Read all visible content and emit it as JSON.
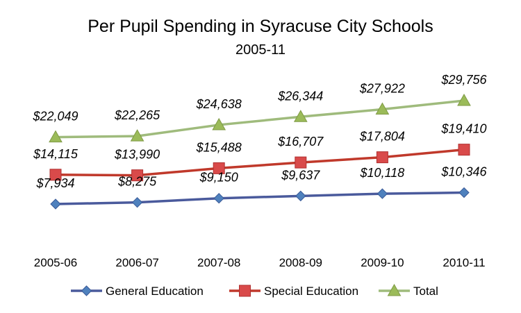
{
  "chart_data": {
    "type": "line",
    "title": "Per Pupil Spending  in Syracuse City Schools",
    "subtitle": "2005-11",
    "xlabel": "",
    "ylabel": "",
    "categories": [
      "2005-06",
      "2006-07",
      "2007-08",
      "2008-09",
      "2009-10",
      "2010-11"
    ],
    "series": [
      {
        "name": "General Education",
        "values": [
          7934,
          8275,
          9150,
          9637,
          10118,
          10346
        ],
        "labels": [
          "$7,934",
          "$8,275",
          "$9,150",
          "$9,637",
          "$10,118",
          "$10,346"
        ],
        "color": "#4a5a9c",
        "marker_color": "#4f81bd",
        "marker": "diamond"
      },
      {
        "name": "Special Education",
        "values": [
          14115,
          13990,
          15488,
          16707,
          17804,
          19410
        ],
        "labels": [
          "$14,115",
          "$13,990",
          "$15,488",
          "$16,707",
          "$17,804",
          "$19,410"
        ],
        "color": "#c0392b",
        "marker_color": "#d94a4a",
        "marker": "square"
      },
      {
        "name": "Total",
        "values": [
          22049,
          22265,
          24638,
          26344,
          27922,
          29756
        ],
        "labels": [
          "$22,049",
          "$22,265",
          "$24,638",
          "$26,344",
          "$27,922",
          "$29,756"
        ],
        "color": "#9fbb7c",
        "marker_color": "#9bbb59",
        "marker": "triangle"
      }
    ],
    "y_axis_visible": false,
    "grid": false,
    "legend": "bottom"
  }
}
